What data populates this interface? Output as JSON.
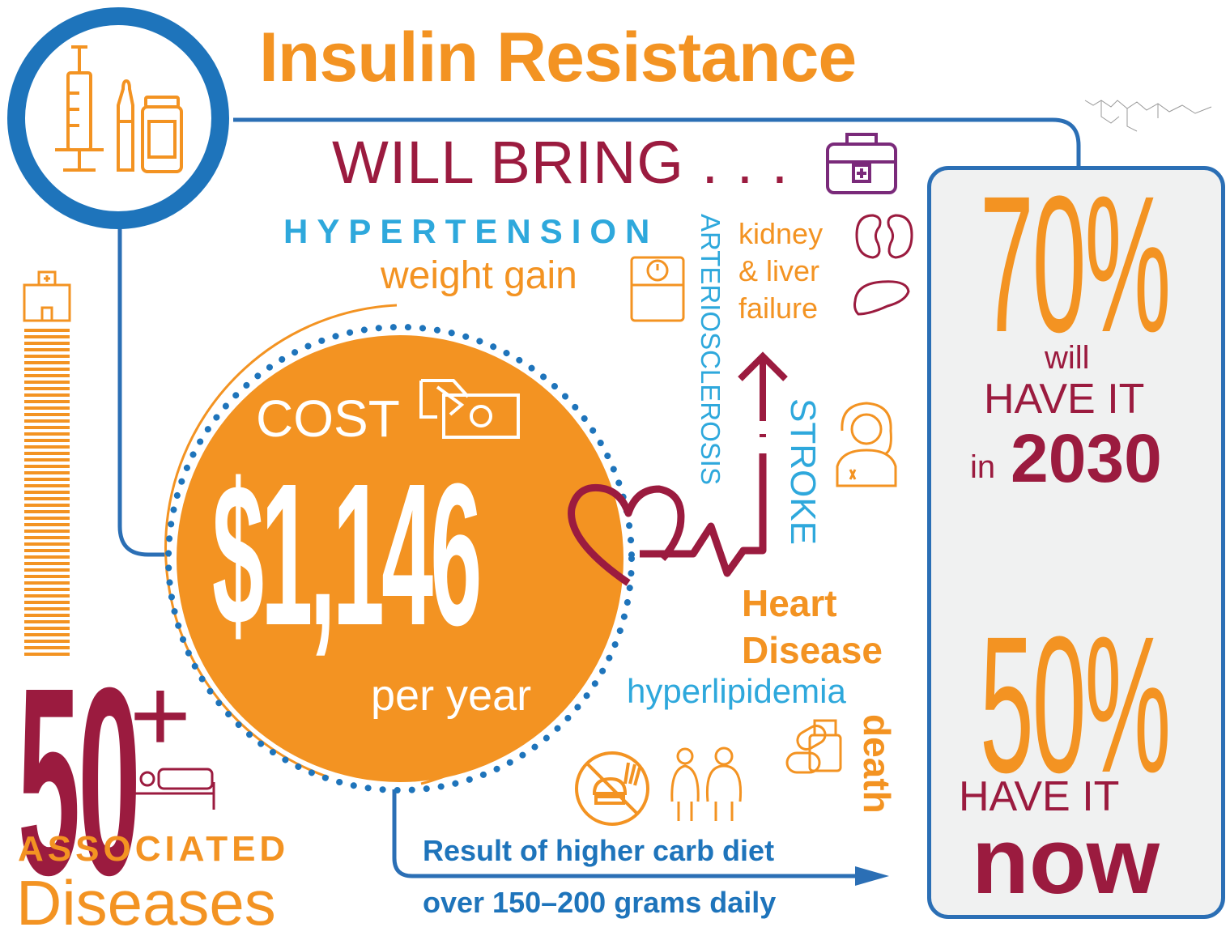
{
  "title": "Insulin Resistance",
  "will_bring": "WILL BRING . . .",
  "conditions": {
    "hypertension": "HYPERTENSION",
    "weight_gain": "weight gain",
    "kidney_line1": "kidney",
    "kidney_line2": "& liver",
    "kidney_line3": "failure",
    "arteriosclerosis": "ARTERIOSCLEROSIS",
    "stroke": "STROKE",
    "heart_line1": "Heart",
    "heart_line2": "Disease",
    "hyperlipidemia": "hyperlipidemia",
    "death": "death"
  },
  "cost": {
    "label": "COST",
    "amount": "$1,146",
    "period": "per year"
  },
  "associated": {
    "number": "50",
    "plus": "+",
    "label1": "ASSOCIATED",
    "label2": "Diseases"
  },
  "diet": {
    "line1": "Result of higher carb diet",
    "line2": "over 150–200 grams daily"
  },
  "stats": {
    "future_percent": "70%",
    "future_line1": "will",
    "future_line2": "HAVE IT",
    "future_in": "in",
    "future_year": "2030",
    "now_percent": "50%",
    "now_line1": "HAVE IT",
    "now_line2": "now"
  },
  "colors": {
    "orange": "#f39322",
    "maroon": "#9b1b3f",
    "blue": "#1e74bb",
    "cyan": "#2ea8dc",
    "purple": "#7a2a7a"
  },
  "icons": [
    "syringe-icon",
    "vial-icon",
    "medical-bag-icon",
    "scale-icon",
    "kidney-icon",
    "liver-icon",
    "money-icon",
    "heart-icon",
    "doctor-icon",
    "pills-icon",
    "no-fast-food-icon",
    "people-icon",
    "hospital-icon",
    "patient-bed-icon",
    "blood-cells-icon",
    "molecule-icon"
  ]
}
